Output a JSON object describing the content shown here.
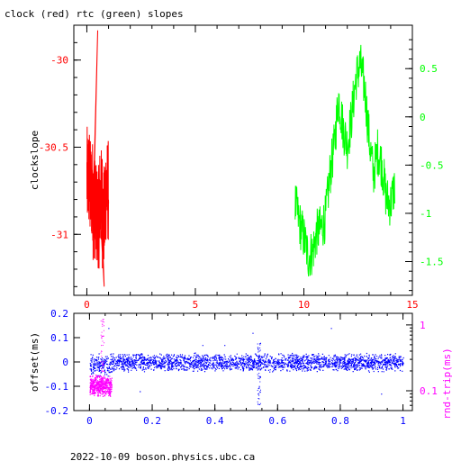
{
  "title": "clock (red) rtc (green) slopes",
  "footer": "2022-10-09  boson.physics.ubc.ca",
  "colors": {
    "red": "#ff0000",
    "green": "#00ff00",
    "blue": "#0000ff",
    "magenta": "#ff00ff",
    "axis": "#000000"
  },
  "chart_data": [
    {
      "type": "line",
      "title": "clock (red) rtc (green) slopes",
      "xlabel": "",
      "ylabel": "clockslope",
      "xlim": [
        -0.6,
        15
      ],
      "x_ticks": [
        "0",
        "5",
        "10",
        "15"
      ],
      "y_left": {
        "lim": [
          -31.35,
          -29.8
        ],
        "ticks": [
          "-30",
          "-30.5",
          "-31"
        ],
        "color": "#ff0000"
      },
      "y_right": {
        "lim": [
          -1.85,
          0.95
        ],
        "ticks": [
          "0.5",
          "0",
          "-0.5",
          "-1",
          "-1.5"
        ],
        "color": "#00ff00"
      },
      "grid": false,
      "series": [
        {
          "color": "#ff0000",
          "axis": "left",
          "x_range": [
            0,
            1
          ],
          "center": [
            -30.68,
            -30.75,
            -30.85,
            -30.9,
            -30.8,
            -30.9,
            -30.75
          ],
          "spread": 0.3,
          "max": -29.83,
          "min": -31.3
        },
        {
          "color": "#00ff00",
          "axis": "right",
          "x": [
            9.6,
            9.8,
            10.0,
            10.2,
            10.4,
            10.6,
            10.8,
            11.0,
            11.2,
            11.4,
            11.6,
            11.8,
            12.0,
            12.2,
            12.4,
            12.6,
            12.8,
            13.0,
            13.2,
            13.4,
            13.6,
            13.8,
            14.0,
            14.2
          ],
          "y": [
            -0.9,
            -1.1,
            -1.25,
            -1.45,
            -1.4,
            -1.2,
            -1.15,
            -1.05,
            -0.6,
            -0.3,
            0.2,
            -0.1,
            -0.3,
            0.0,
            0.4,
            0.55,
            0.3,
            -0.2,
            -0.6,
            -0.35,
            -0.5,
            -0.85,
            -0.9,
            -0.7
          ]
        }
      ]
    },
    {
      "type": "scatter",
      "xlabel": "",
      "ylabel": "offset(ms)",
      "y2label": "rnd-trip(ms)",
      "xlim": [
        -0.05,
        1.03
      ],
      "x_ticks": [
        "0",
        "0.2",
        "0.4",
        "0.6",
        "0.8",
        "1"
      ],
      "y_left": {
        "lim": [
          -0.2,
          0.2
        ],
        "ticks": [
          "0.2",
          "0.1",
          "0",
          "-0.1",
          "-0.2"
        ],
        "color": "#0000ff"
      },
      "y_right": {
        "scale": "log",
        "lim": [
          0.05,
          1.5
        ],
        "ticks": [
          "1",
          "0.1"
        ],
        "color": "#ff00ff"
      },
      "series": [
        {
          "name": "offset",
          "color": "#0000ff",
          "x_range": [
            0,
            1
          ],
          "center": 0.0,
          "spread": 0.04
        },
        {
          "name": "rnd-trip",
          "color": "#ff00ff",
          "x_range": [
            0,
            0.07
          ],
          "center": 0.12,
          "spread": 0.05
        }
      ],
      "annotations": [
        {
          "type": "vertical-scatter",
          "x": 0.54,
          "color": "#0000ff"
        }
      ]
    }
  ]
}
